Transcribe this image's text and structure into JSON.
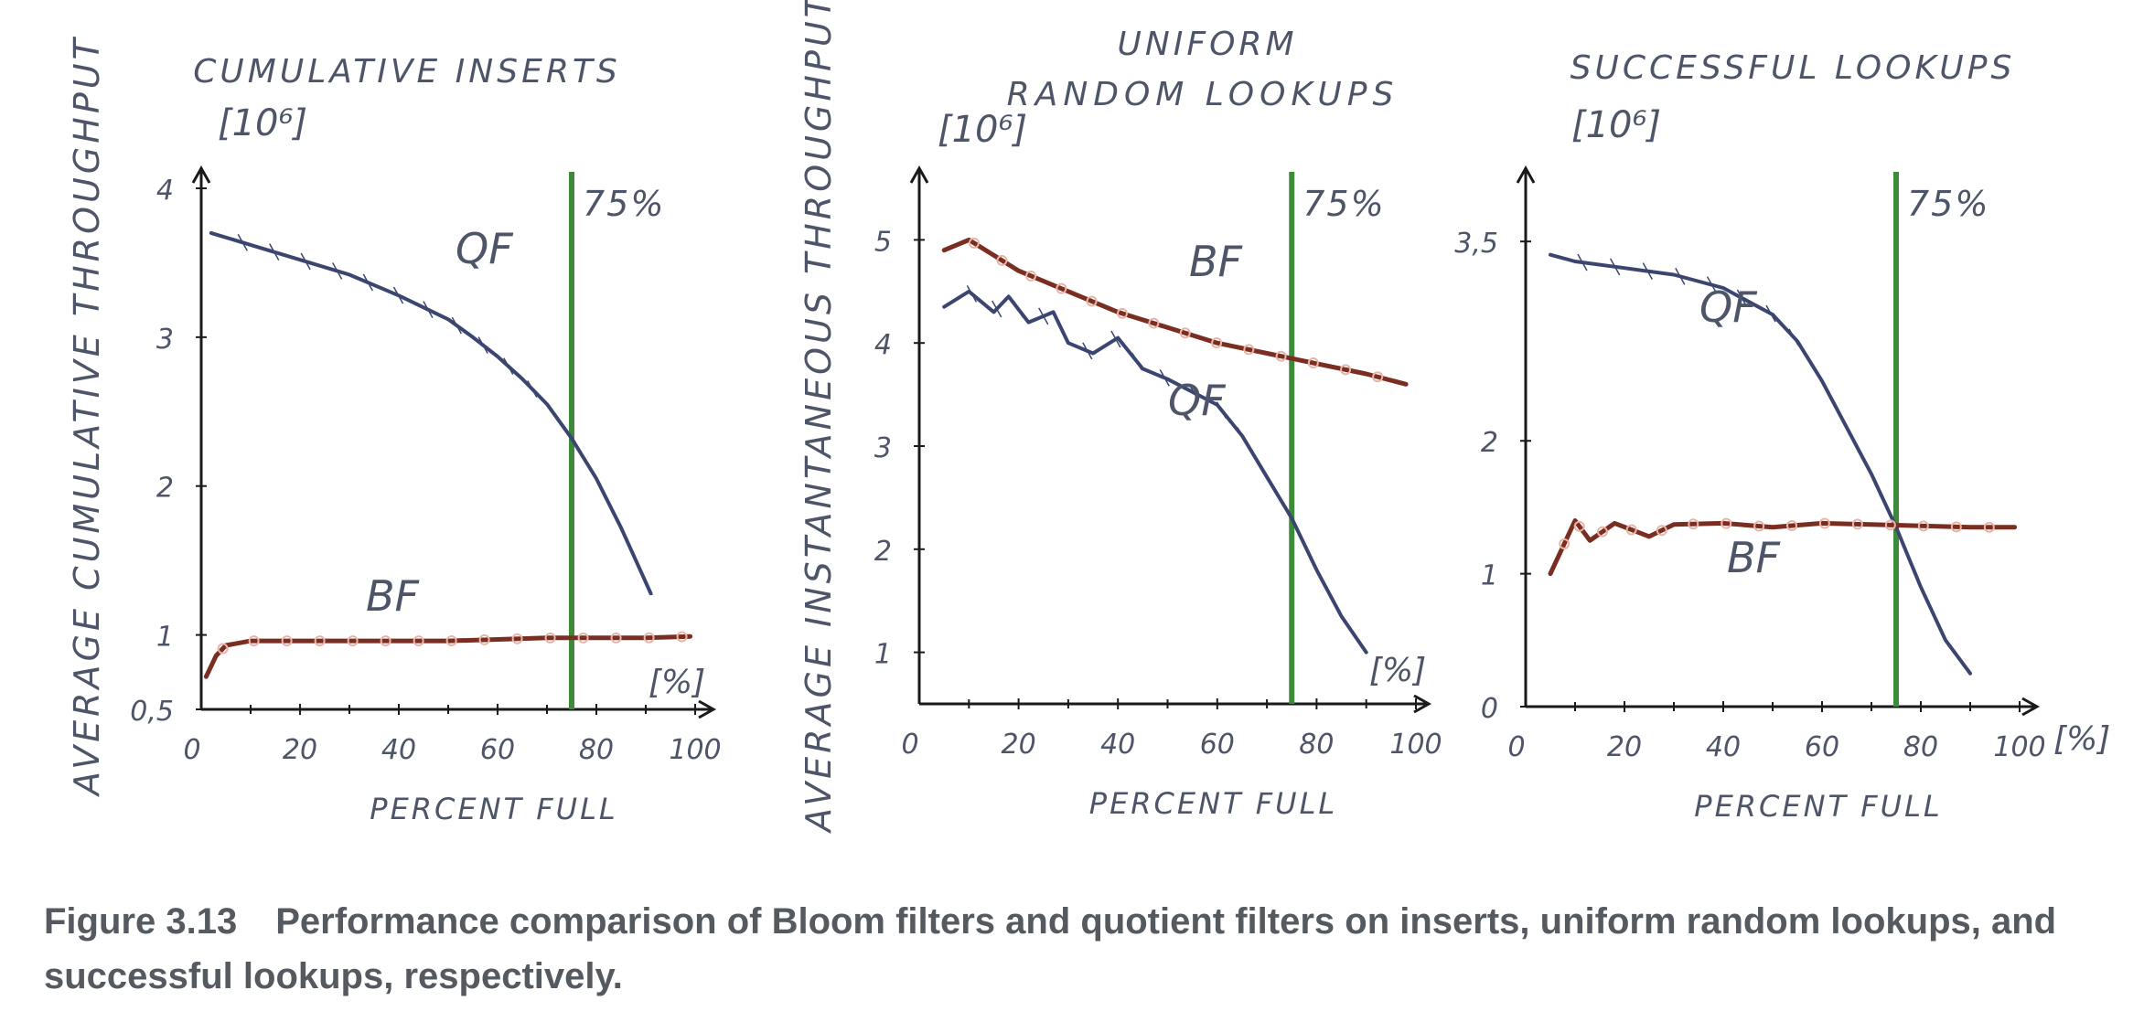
{
  "figure": {
    "label": "Figure 3.13",
    "caption": "Performance comparison of Bloom filters and quotient filters on inserts, uniform random lookups, and successful lookups, respectively."
  },
  "shared": {
    "ylabel_left": "AVERAGE CUMULATIVE THROUGHPUT",
    "ylabel_middle": "AVERAGE INSTANTANEOUS THROUGHPUT",
    "xlabel": "PERCENT FULL",
    "y_unit": "[10⁶]",
    "x_unit": "[%]",
    "marker_label": "75%"
  },
  "colors": {
    "qf": "#3b4670",
    "bf": "#7a2e22",
    "bf_marker": "#e8b4a8",
    "marker": "#3d8b3a",
    "axis": "#1a1a1a",
    "text": "#4e5568",
    "bf_label": "#7d6458"
  },
  "chart_data": [
    {
      "type": "line",
      "title": "CUMULATIVE INSERTS",
      "ylabel": "AVERAGE CUMULATIVE THROUGHPUT",
      "xlabel": "PERCENT FULL",
      "y_unit": "[10⁶]",
      "x_unit": "[%]",
      "xlim": [
        0,
        100
      ],
      "ylim": [
        0.5,
        4
      ],
      "x_ticks": [
        0,
        20,
        40,
        60,
        80,
        100
      ],
      "x_tick_labels": [
        "0",
        "20",
        "40",
        "60",
        "80",
        "100"
      ],
      "y_ticks": [
        0.5,
        1,
        2,
        3,
        4
      ],
      "y_tick_labels": [
        "0,5",
        "1",
        "2",
        "3",
        "4"
      ],
      "vline": {
        "x": 75,
        "label": "75%"
      },
      "series": [
        {
          "name": "QF",
          "x": [
            2,
            10,
            20,
            30,
            40,
            50,
            55,
            60,
            65,
            70,
            75,
            80,
            85,
            88,
            91
          ],
          "y": [
            3.7,
            3.62,
            3.52,
            3.42,
            3.28,
            3.12,
            3.0,
            2.87,
            2.72,
            2.55,
            2.32,
            2.05,
            1.72,
            1.5,
            1.28
          ]
        },
        {
          "name": "BF",
          "x": [
            1,
            3,
            5,
            10,
            15,
            20,
            30,
            40,
            50,
            60,
            70,
            75,
            80,
            90,
            99
          ],
          "y": [
            0.72,
            0.86,
            0.93,
            0.96,
            0.96,
            0.96,
            0.96,
            0.96,
            0.96,
            0.97,
            0.98,
            0.98,
            0.98,
            0.98,
            0.99
          ]
        }
      ]
    },
    {
      "type": "line",
      "title": "UNIFORM RANDOM LOOKUPS",
      "ylabel": "AVERAGE INSTANTANEOUS THROUGHPUT",
      "xlabel": "PERCENT FULL",
      "y_unit": "[10⁶]",
      "x_unit": "[%]",
      "xlim": [
        0,
        100
      ],
      "ylim": [
        0.5,
        5.5
      ],
      "x_ticks": [
        0,
        20,
        40,
        60,
        80,
        100
      ],
      "x_tick_labels": [
        "0",
        "20",
        "40",
        "60",
        "80",
        "100"
      ],
      "y_ticks": [
        1,
        2,
        3,
        4,
        5
      ],
      "y_tick_labels": [
        "1",
        "2",
        "3",
        "4",
        "5"
      ],
      "vline": {
        "x": 75,
        "label": "75%"
      },
      "series": [
        {
          "name": "BF",
          "x": [
            5,
            10,
            15,
            20,
            30,
            40,
            50,
            60,
            70,
            80,
            90,
            98
          ],
          "y": [
            4.9,
            5.0,
            4.85,
            4.7,
            4.5,
            4.3,
            4.15,
            4.0,
            3.9,
            3.8,
            3.7,
            3.6
          ]
        },
        {
          "name": "QF",
          "x": [
            5,
            10,
            15,
            18,
            22,
            27,
            30,
            35,
            40,
            45,
            50,
            60,
            65,
            70,
            75,
            80,
            85,
            90
          ],
          "y": [
            4.35,
            4.5,
            4.3,
            4.45,
            4.2,
            4.3,
            4.0,
            3.9,
            4.05,
            3.75,
            3.65,
            3.4,
            3.1,
            2.7,
            2.3,
            1.8,
            1.35,
            1.0
          ]
        }
      ]
    },
    {
      "type": "line",
      "title": "SUCCESSFUL LOOKUPS",
      "xlabel": "PERCENT FULL",
      "y_unit": "[10⁶]",
      "x_unit": "[%]",
      "xlim": [
        0,
        100
      ],
      "ylim": [
        0,
        3.9
      ],
      "x_ticks": [
        0,
        20,
        40,
        60,
        80,
        100
      ],
      "x_tick_labels": [
        "0",
        "20",
        "40",
        "60",
        "80",
        "100"
      ],
      "y_ticks": [
        0,
        1,
        2,
        3.5
      ],
      "y_tick_labels": [
        "0",
        "1",
        "2",
        "3,5"
      ],
      "vline": {
        "x": 75,
        "label": "75%"
      },
      "series": [
        {
          "name": "QF",
          "x": [
            5,
            10,
            20,
            30,
            40,
            50,
            55,
            60,
            65,
            70,
            75,
            80,
            85,
            90
          ],
          "y": [
            3.4,
            3.35,
            3.3,
            3.25,
            3.15,
            2.95,
            2.75,
            2.45,
            2.1,
            1.75,
            1.35,
            0.9,
            0.5,
            0.25
          ]
        },
        {
          "name": "BF",
          "x": [
            5,
            10,
            13,
            18,
            25,
            30,
            40,
            50,
            60,
            70,
            80,
            90,
            99
          ],
          "y": [
            1.0,
            1.4,
            1.25,
            1.38,
            1.28,
            1.37,
            1.38,
            1.35,
            1.38,
            1.37,
            1.36,
            1.35,
            1.35
          ]
        }
      ]
    }
  ]
}
